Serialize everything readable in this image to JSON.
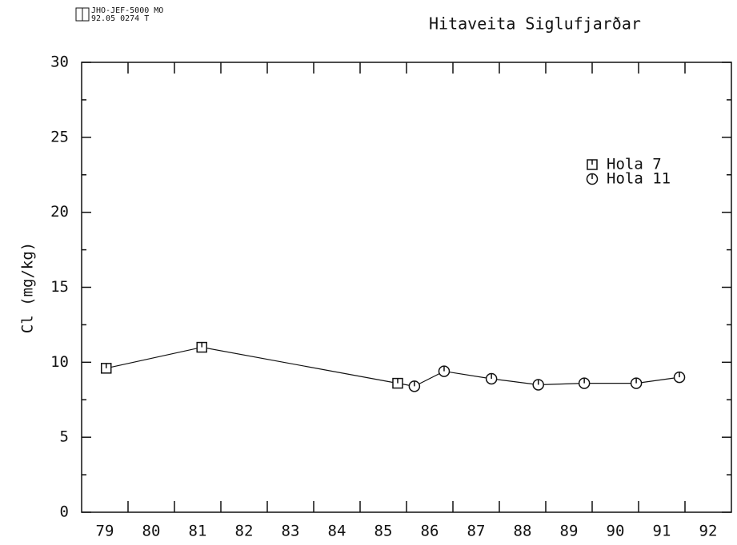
{
  "chart_data": {
    "type": "scatter-line",
    "title": "Hitaveita Siglufjarðar",
    "logo_lines": [
      "JHO-JEF-5000 MO",
      "92.05 0274  T"
    ],
    "ylabel": "Cl  (mg/kg)",
    "xlim": [
      79,
      93
    ],
    "ylim": [
      0,
      30
    ],
    "xticks": [
      {
        "value": 79.5,
        "label": "79"
      },
      {
        "value": 80.5,
        "label": "80"
      },
      {
        "value": 81.5,
        "label": "81"
      },
      {
        "value": 82.5,
        "label": "82"
      },
      {
        "value": 83.5,
        "label": "83"
      },
      {
        "value": 84.5,
        "label": "84"
      },
      {
        "value": 85.5,
        "label": "85"
      },
      {
        "value": 86.5,
        "label": "86"
      },
      {
        "value": 87.5,
        "label": "87"
      },
      {
        "value": 88.5,
        "label": "88"
      },
      {
        "value": 89.5,
        "label": "89"
      },
      {
        "value": 90.5,
        "label": "90"
      },
      {
        "value": 91.5,
        "label": "91"
      },
      {
        "value": 92.5,
        "label": "92"
      }
    ],
    "xminorticks": [
      80,
      81,
      82,
      83,
      84,
      85,
      86,
      87,
      88,
      89,
      90,
      91,
      92
    ],
    "yticks": [
      0,
      5,
      10,
      15,
      20,
      25,
      30
    ],
    "yminorticks": [
      2.5,
      7.5,
      12.5,
      17.5,
      22.5,
      27.5
    ],
    "series": [
      {
        "name": "Hola 7",
        "marker": "square",
        "color": "#111",
        "x": [
          79.53,
          81.59,
          85.81
        ],
        "values": [
          9.6,
          11.0,
          8.6
        ]
      },
      {
        "name": "Hola 11",
        "marker": "circle",
        "color": "#111",
        "x": [
          86.17,
          86.81,
          87.83,
          88.84,
          89.83,
          90.95,
          91.88
        ],
        "values": [
          8.4,
          9.4,
          8.9,
          8.5,
          8.6,
          8.6,
          9.0
        ]
      }
    ]
  }
}
